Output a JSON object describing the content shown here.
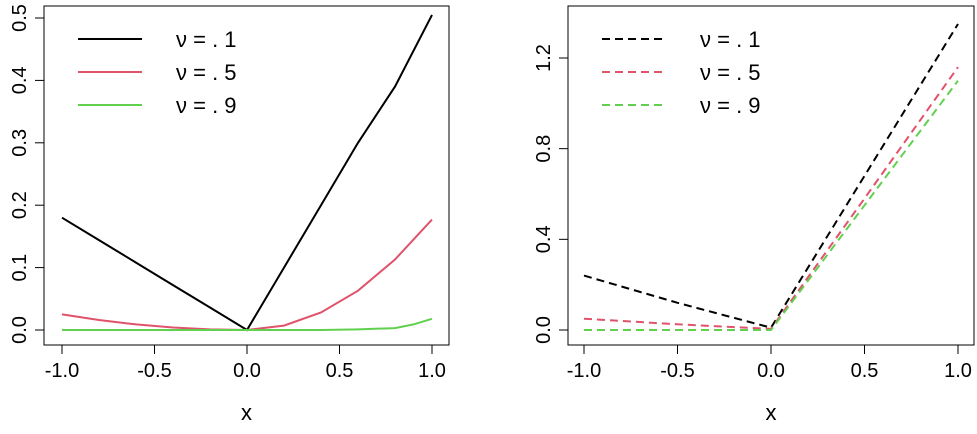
{
  "colors": {
    "black": "#000000",
    "red": "#DF536B",
    "green": "#61D04F"
  },
  "chart_data": [
    {
      "type": "line",
      "title": "",
      "xlabel": "x",
      "ylabel": "",
      "xlim": [
        -1.0,
        1.0
      ],
      "ylim": [
        0.0,
        0.5
      ],
      "xticks": [
        "-1.0",
        "-0.5",
        "0.0",
        "0.5",
        "1.0"
      ],
      "xtick_values": [
        -1.0,
        -0.5,
        0.0,
        0.5,
        1.0
      ],
      "yticks": [
        "0.0",
        "0.1",
        "0.2",
        "0.3",
        "0.4",
        "0.5"
      ],
      "ytick_values": [
        0.0,
        0.1,
        0.2,
        0.3,
        0.4,
        0.5
      ],
      "legend_position": "top-left",
      "grid": false,
      "series": [
        {
          "name": "ν = . 1",
          "color": "#000000",
          "dash": "solid",
          "x": [
            -1.0,
            -0.8,
            -0.6,
            -0.4,
            -0.2,
            0.0,
            0.2,
            0.4,
            0.6,
            0.8,
            1.0
          ],
          "y": [
            0.18,
            0.144,
            0.108,
            0.072,
            0.036,
            0.0,
            0.1,
            0.2,
            0.3,
            0.39,
            0.505
          ]
        },
        {
          "name": "ν = . 5",
          "color": "#DF536B",
          "dash": "solid",
          "x": [
            -1.0,
            -0.8,
            -0.6,
            -0.4,
            -0.2,
            0.0,
            0.2,
            0.4,
            0.6,
            0.8,
            1.0
          ],
          "y": [
            0.025,
            0.016,
            0.009,
            0.004,
            0.001,
            0.0,
            0.007,
            0.028,
            0.063,
            0.113,
            0.177
          ]
        },
        {
          "name": "ν = . 9",
          "color": "#61D04F",
          "dash": "solid",
          "x": [
            -1.0,
            -0.8,
            -0.6,
            -0.4,
            -0.2,
            0.0,
            0.2,
            0.4,
            0.6,
            0.8,
            0.9,
            1.0
          ],
          "y": [
            0.0,
            0.0,
            0.0,
            0.0,
            0.0,
            0.0,
            0.0,
            0.0,
            0.001,
            0.003,
            0.009,
            0.018
          ]
        }
      ]
    },
    {
      "type": "line",
      "title": "",
      "xlabel": "x",
      "ylabel": "",
      "xlim": [
        -1.0,
        1.0
      ],
      "ylim": [
        0.0,
        1.35
      ],
      "xticks": [
        "-1.0",
        "-0.5",
        "0.0",
        "0.5",
        "1.0"
      ],
      "xtick_values": [
        -1.0,
        -0.5,
        0.0,
        0.5,
        1.0
      ],
      "yticks": [
        "0.0",
        "0.4",
        "0.8",
        "1.2"
      ],
      "ytick_values": [
        0.0,
        0.4,
        0.8,
        1.2
      ],
      "legend_position": "top-left",
      "grid": false,
      "series": [
        {
          "name": "ν = . 1",
          "color": "#000000",
          "dash": "dashed",
          "x": [
            -1.0,
            -0.5,
            0.0,
            0.5,
            1.0
          ],
          "y": [
            0.24,
            0.12,
            0.01,
            0.68,
            1.35
          ]
        },
        {
          "name": "ν = . 5",
          "color": "#DF536B",
          "dash": "dashed",
          "x": [
            -1.0,
            -0.5,
            0.0,
            0.5,
            1.0
          ],
          "y": [
            0.05,
            0.025,
            0.005,
            0.58,
            1.16
          ]
        },
        {
          "name": "ν = . 9",
          "color": "#61D04F",
          "dash": "dashed",
          "x": [
            -1.0,
            -0.5,
            0.0,
            0.5,
            1.0
          ],
          "y": [
            0.0,
            0.0,
            0.0,
            0.55,
            1.1
          ]
        }
      ]
    }
  ]
}
